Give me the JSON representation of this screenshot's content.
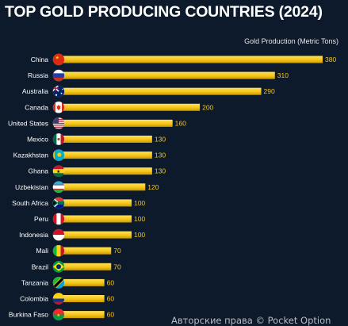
{
  "chart_data": {
    "type": "bar",
    "orientation": "horizontal",
    "title": "TOP GOLD PRODUCING COUNTRIES (2024)",
    "subtitle": "Gold Production (Metric Tons)",
    "categories": [
      "China",
      "Russia",
      "Australia",
      "Canada",
      "United States",
      "Mexico",
      "Kazakhstan",
      "Ghana",
      "Uzbekistan",
      "South Africa",
      "Peru",
      "Indonesia",
      "Mali",
      "Brazil",
      "Tanzania",
      "Colombia",
      "Burkina Faso"
    ],
    "values": [
      380,
      310,
      290,
      200,
      160,
      130,
      130,
      130,
      120,
      100,
      100,
      100,
      70,
      70,
      60,
      60,
      60
    ],
    "flags": [
      "china-flag-icon",
      "russia-flag-icon",
      "australia-flag-icon",
      "canada-flag-icon",
      "usa-flag-icon",
      "mexico-flag-icon",
      "kazakhstan-flag-icon",
      "ghana-flag-icon",
      "uzbekistan-flag-icon",
      "south-africa-flag-icon",
      "peru-flag-icon",
      "indonesia-flag-icon",
      "mali-flag-icon",
      "brazil-flag-icon",
      "tanzania-flag-icon",
      "colombia-flag-icon",
      "burkina-faso-flag-icon"
    ],
    "bar_color": "#f5c518",
    "value_color": "#f5c518",
    "background": "#0d1a2b",
    "grid": false,
    "xlim": [
      0,
      380
    ]
  },
  "watermark": "Авторские права © Pocket Option"
}
